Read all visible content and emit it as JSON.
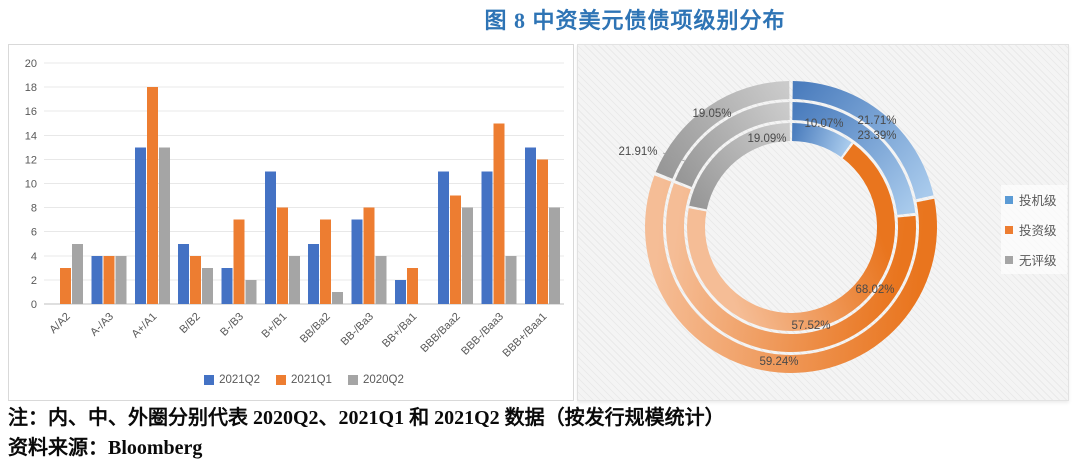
{
  "page": {
    "title": "图 8 中资美元债债项级别分布",
    "notes": [
      "注：内、中、外圈分别代表 2020Q2、2021Q1 和 2021Q2 数据（按发行规模统计）",
      "资料来源：Bloomberg"
    ]
  },
  "colors": {
    "title": "#2E74B5",
    "bar_blue": "#4472C4",
    "bar_orange": "#ED7D31",
    "bar_gray": "#A5A5A5",
    "axis_text": "#595959",
    "gridline": "#E8E8E8",
    "axis_line": "#BFBFBF",
    "donut_label_text": "#4a4a4a"
  },
  "chart_data": [
    {
      "type": "bar",
      "title": "",
      "categories": [
        "A/A2",
        "A-/A3",
        "A+/A1",
        "B/B2",
        "B-/B3",
        "B+/B1",
        "BB/Ba2",
        "BB-/Ba3",
        "BB+/Ba1",
        "BBB/Baa2",
        "BBB-/Baa3",
        "BBB+/Baa1"
      ],
      "series": [
        {
          "name": "2021Q2",
          "color": "#4472C4",
          "values": [
            0,
            4,
            13,
            5,
            3,
            11,
            5,
            7,
            2,
            11,
            11,
            13
          ]
        },
        {
          "name": "2021Q1",
          "color": "#ED7D31",
          "values": [
            3,
            4,
            18,
            4,
            7,
            8,
            7,
            8,
            3,
            9,
            15,
            12
          ]
        },
        {
          "name": "2020Q2",
          "color": "#A5A5A5",
          "values": [
            5,
            4,
            13,
            3,
            2,
            4,
            1,
            4,
            0,
            8,
            4,
            8
          ]
        }
      ],
      "ylim": [
        0,
        20
      ],
      "yticks": [
        0,
        2,
        4,
        6,
        8,
        10,
        12,
        14,
        16,
        18,
        20
      ],
      "grid": true,
      "legend_position": "bottom"
    },
    {
      "type": "donut",
      "legend": [
        "投机级",
        "投资级",
        "无评级"
      ],
      "legend_colors": [
        "#5B9BD5",
        "#ED7D31",
        "#A5A5A5"
      ],
      "legend_position": "right",
      "unit": "%",
      "rings": [
        {
          "name": "2020Q2",
          "position": "inner",
          "values": [
            10.07,
            68.02,
            21.91
          ]
        },
        {
          "name": "2021Q1",
          "position": "middle",
          "values": [
            23.39,
            57.52,
            19.09
          ]
        },
        {
          "name": "2021Q2",
          "position": "outer",
          "values": [
            21.71,
            59.24,
            19.05
          ]
        }
      ]
    }
  ]
}
